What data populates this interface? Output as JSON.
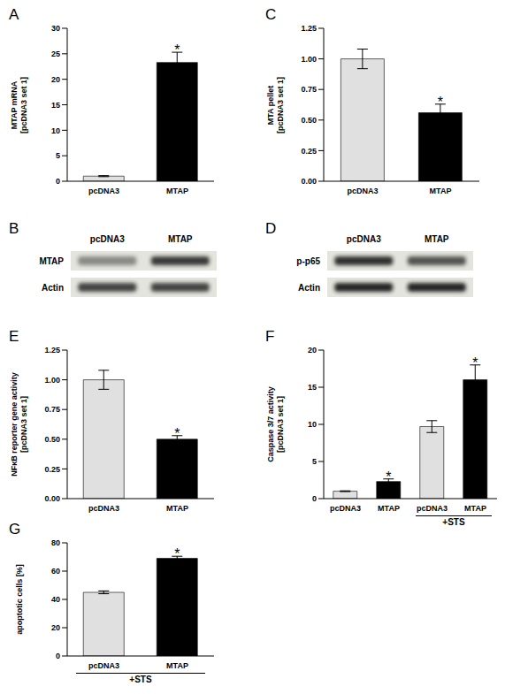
{
  "chart_data": [
    {
      "panel": "A",
      "type": "bar",
      "y_label": [
        "MTAP mRNA",
        "[pcDNA3 set 1]"
      ],
      "categories": [
        "pcDNA3",
        "MTAP"
      ],
      "values": [
        1.0,
        23.3
      ],
      "errors": [
        0.1,
        2.0
      ],
      "significance": [
        null,
        "*"
      ],
      "colors": [
        "#e0e0e0",
        "#000000"
      ],
      "ylim": [
        0,
        30
      ],
      "yticks": [
        0,
        5,
        10,
        15,
        20,
        25,
        30
      ]
    },
    {
      "panel": "B",
      "type": "blot",
      "lanes": [
        "pcDNA3",
        "MTAP"
      ],
      "bands": [
        {
          "name": "MTAP",
          "intensities": [
            0.45,
            0.85
          ]
        },
        {
          "name": "Actin",
          "intensities": [
            0.8,
            0.8
          ]
        }
      ]
    },
    {
      "panel": "C",
      "type": "bar",
      "y_label": [
        "MTA pellet",
        "[pcDNA3 set 1]"
      ],
      "categories": [
        "pcDNA3",
        "MTAP"
      ],
      "values": [
        1.0,
        0.56
      ],
      "errors": [
        0.08,
        0.07
      ],
      "significance": [
        null,
        "*"
      ],
      "colors": [
        "#e0e0e0",
        "#000000"
      ],
      "ylim": [
        0,
        1.25
      ],
      "yticks": [
        {
          "value": 0,
          "label": "0.00"
        },
        {
          "value": 0.25,
          "label": "0.25"
        },
        {
          "value": 0.5,
          "label": "0.50"
        },
        {
          "value": 0.75,
          "label": "0.75"
        },
        {
          "value": 1,
          "label": "1.00"
        },
        {
          "value": 1.25,
          "label": "1.25"
        }
      ]
    },
    {
      "panel": "D",
      "type": "blot",
      "lanes": [
        "pcDNA3",
        "MTAP"
      ],
      "bands": [
        {
          "name": "p-p65",
          "intensities": [
            0.9,
            0.72
          ]
        },
        {
          "name": "Actin",
          "intensities": [
            0.95,
            0.95
          ]
        }
      ]
    },
    {
      "panel": "E",
      "type": "bar",
      "y_label": [
        "NFκB reporter gene activity",
        "[pcDNA3 set 1]"
      ],
      "categories": [
        "pcDNA3",
        "MTAP"
      ],
      "values": [
        1.0,
        0.5
      ],
      "errors": [
        0.08,
        0.03
      ],
      "significance": [
        null,
        "*"
      ],
      "colors": [
        "#e0e0e0",
        "#000000"
      ],
      "ylim": [
        0,
        1.25
      ],
      "yticks": [
        {
          "value": 0,
          "label": "0.00"
        },
        {
          "value": 0.25,
          "label": "0.25"
        },
        {
          "value": 0.5,
          "label": "0.50"
        },
        {
          "value": 0.75,
          "label": "0.75"
        },
        {
          "value": 1,
          "label": "1.00"
        },
        {
          "value": 1.25,
          "label": "1.25"
        }
      ]
    },
    {
      "panel": "F",
      "type": "bar",
      "y_label": [
        "Caspase 3/7 activity",
        "[pcDNA3 set 1]"
      ],
      "categories": [
        "pcDNA3",
        "MTAP",
        "pcDNA3",
        "MTAP"
      ],
      "values": [
        1.0,
        2.3,
        9.7,
        16.0
      ],
      "errors": [
        0.05,
        0.35,
        0.8,
        2.0
      ],
      "significance": [
        null,
        "*",
        null,
        "*"
      ],
      "colors": [
        "#e0e0e0",
        "#000000",
        "#e0e0e0",
        "#000000"
      ],
      "ylim": [
        0,
        20
      ],
      "yticks": [
        0,
        5,
        10,
        15,
        20
      ],
      "group_label": {
        "text": "+STS",
        "start": 2,
        "end": 3
      }
    },
    {
      "panel": "G",
      "type": "bar",
      "y_label": [
        "apoptotic cells [%]"
      ],
      "categories": [
        "pcDNA3",
        "MTAP"
      ],
      "values": [
        45,
        69
      ],
      "errors": [
        1,
        1.5
      ],
      "significance": [
        null,
        "*"
      ],
      "colors": [
        "#e0e0e0",
        "#000000"
      ],
      "ylim": [
        0,
        80
      ],
      "yticks": [
        0,
        20,
        40,
        60,
        80
      ],
      "group_label": {
        "text": "+STS",
        "start": 0,
        "end": 1
      }
    }
  ]
}
